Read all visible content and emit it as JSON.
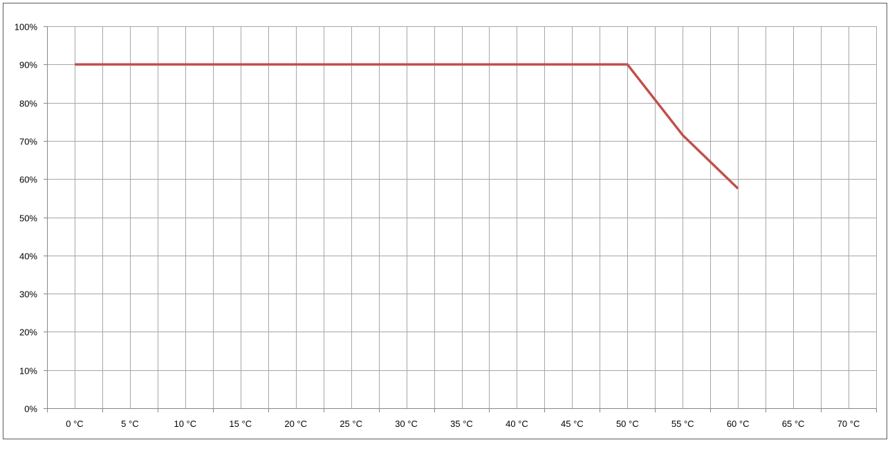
{
  "chart_data": {
    "type": "line",
    "title": "",
    "xlabel": "",
    "ylabel": "",
    "x_categories": [
      "0 °C",
      "5 °C",
      "10 °C",
      "15 °C",
      "20 °C",
      "25 °C",
      "30 °C",
      "35 °C",
      "40 °C",
      "45 °C",
      "50 °C",
      "55 °C",
      "60 °C",
      "65 °C",
      "70 °C"
    ],
    "y_ticks": [
      "0%",
      "10%",
      "20%",
      "30%",
      "40%",
      "50%",
      "60%",
      "70%",
      "80%",
      "90%",
      "100%"
    ],
    "ylim": [
      0,
      100
    ],
    "grid": true,
    "legend": "none",
    "series": [
      {
        "values": [
          90,
          90,
          90,
          90,
          90,
          90,
          90,
          90,
          90,
          90,
          90,
          71.5,
          57.5
        ],
        "color": "#c0504d"
      }
    ],
    "colors": {
      "grid": "#a6a6a6",
      "axis": "#868686",
      "frame": "#595959"
    }
  }
}
